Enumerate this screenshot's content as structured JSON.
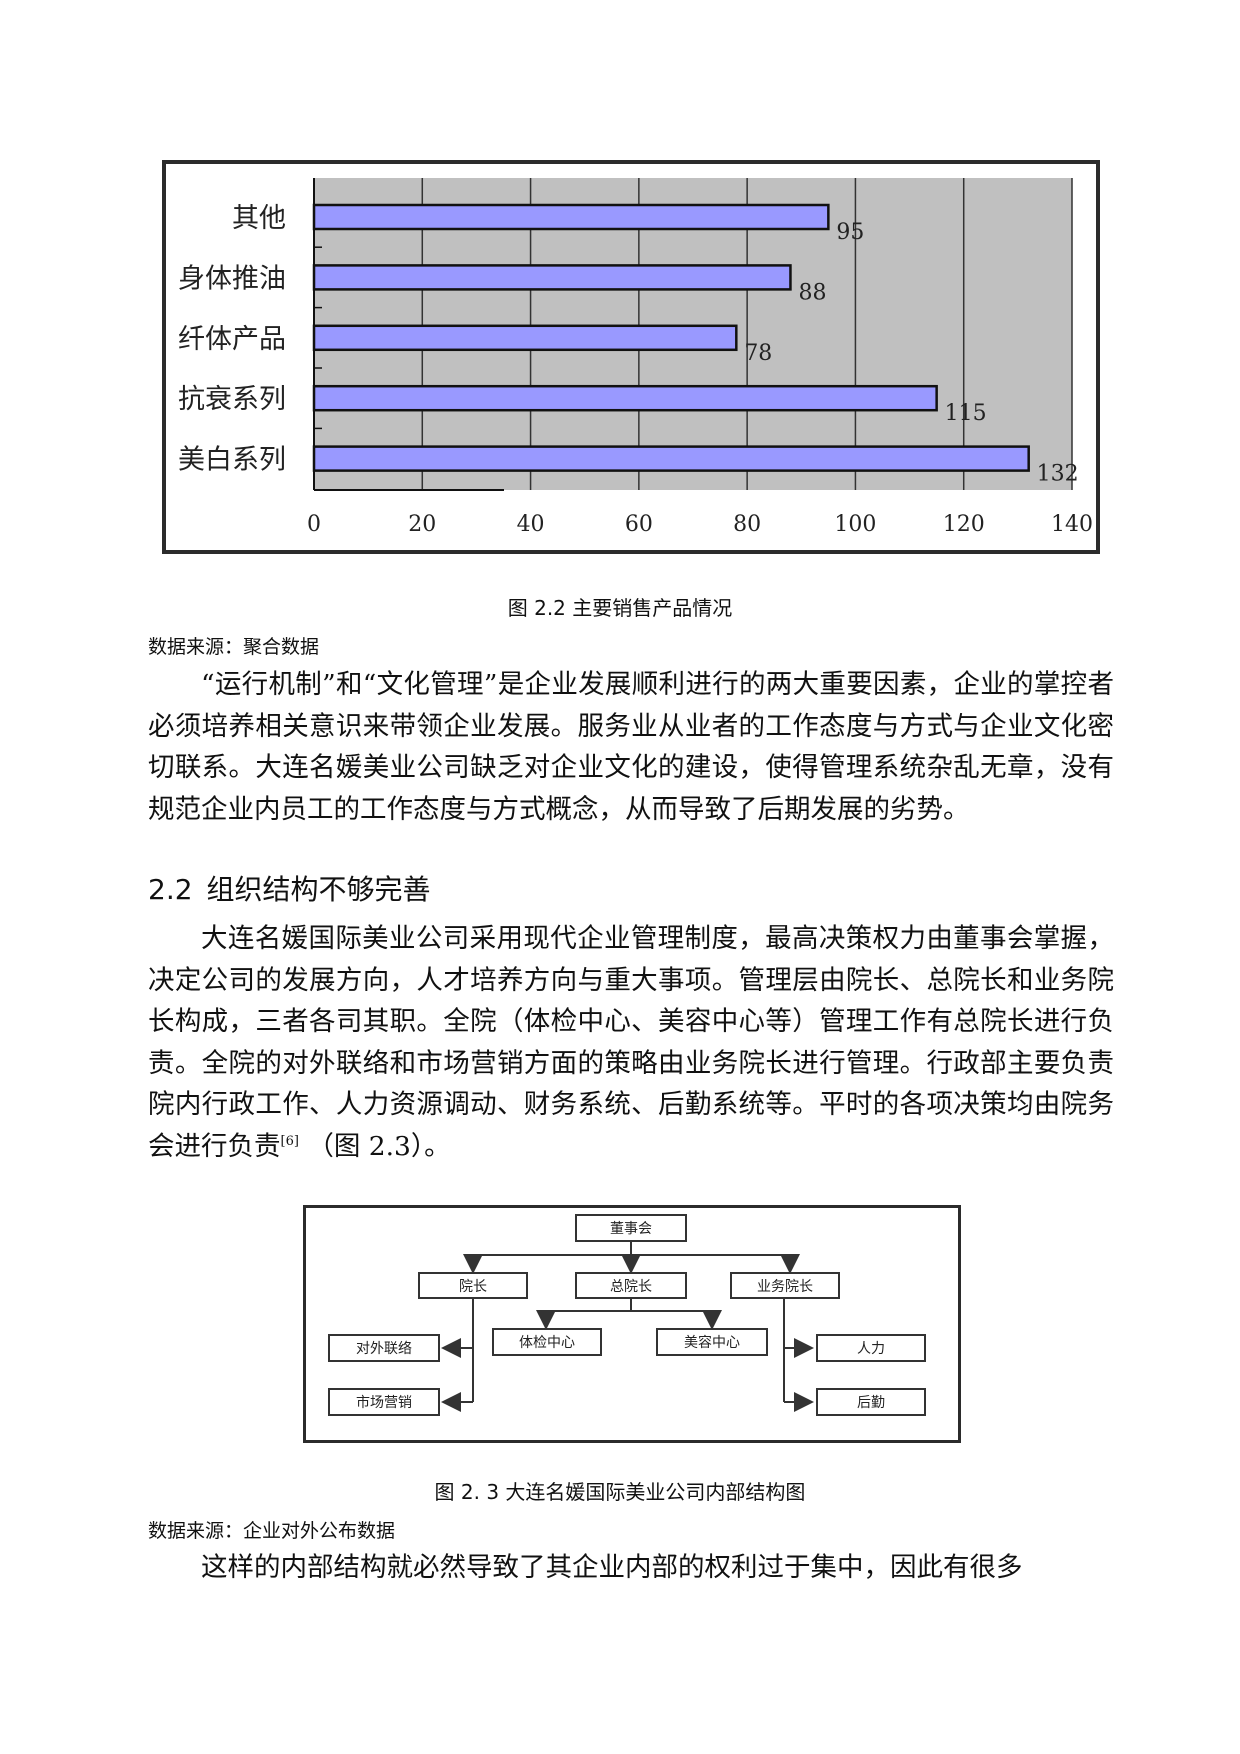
{
  "figure_2_2": {
    "caption": "图 2.2  主要销售产品情况",
    "source": "数据来源：聚合数据"
  },
  "chart_data": {
    "type": "bar",
    "orientation": "horizontal",
    "categories": [
      "其他",
      "身体推油",
      "纤体产品",
      "抗衰系列",
      "美白系列"
    ],
    "values": [
      95,
      88,
      78,
      115,
      132
    ],
    "xlim": [
      0,
      140
    ],
    "xticks": [
      0,
      20,
      40,
      60,
      80,
      100,
      120,
      140
    ],
    "grid": "vertical",
    "plot_background": "#c0c0c0",
    "bar_color": "#9999ff",
    "title": "",
    "xlabel": "",
    "ylabel": ""
  },
  "paragraph_1": "“运行机制”和“文化管理”是企业发展顺利进行的两大重要因素，企业的掌控者必须培养相关意识来带领企业发展。服务业从业者的工作态度与方式与企业文化密切联系。大连名媛美业公司缺乏对企业文化的建设，使得管理系统杂乱无章，没有规范企业内员工的工作态度与方式概念，从而导致了后期发展的劣势。",
  "section_heading": {
    "number": "2.2",
    "title": "组织结构不够完善"
  },
  "paragraph_2": {
    "text": "大连名媛国际美业公司采用现代企业管理制度，最高决策权力由董事会掌握，决定公司的发展方向，人才培养方向与重大事项。管理层由院长、总院长和业务院长构成，三者各司其职。全院（体检中心、美容中心等）管理工作有总院长进行负责。全院的对外联络和市场营销方面的策略由业务院长进行管理。行政部主要负责院内行政工作、人力资源调动、财务系统、后勤系统等。平时的各项决策均由院务会进行负责",
    "citation": "[6]",
    "tail": " （图 2.3）。"
  },
  "org_chart": {
    "top": "董事会",
    "level2": [
      "院长",
      "总院长",
      "业务院长"
    ],
    "yuanzhang_children": [
      "对外联络",
      "市场营销"
    ],
    "zongyuanzhang_children": [
      "体检中心",
      "美容中心"
    ],
    "yewu_children": [
      "人力",
      "后勤"
    ]
  },
  "figure_2_3": {
    "caption": "图 2. 3  大连名媛国际美业公司内部结构图",
    "source": "数据来源：企业对外公布数据"
  },
  "paragraph_3": "这样的内部结构就必然导致了其企业内部的权利过于集中，因此有很多"
}
